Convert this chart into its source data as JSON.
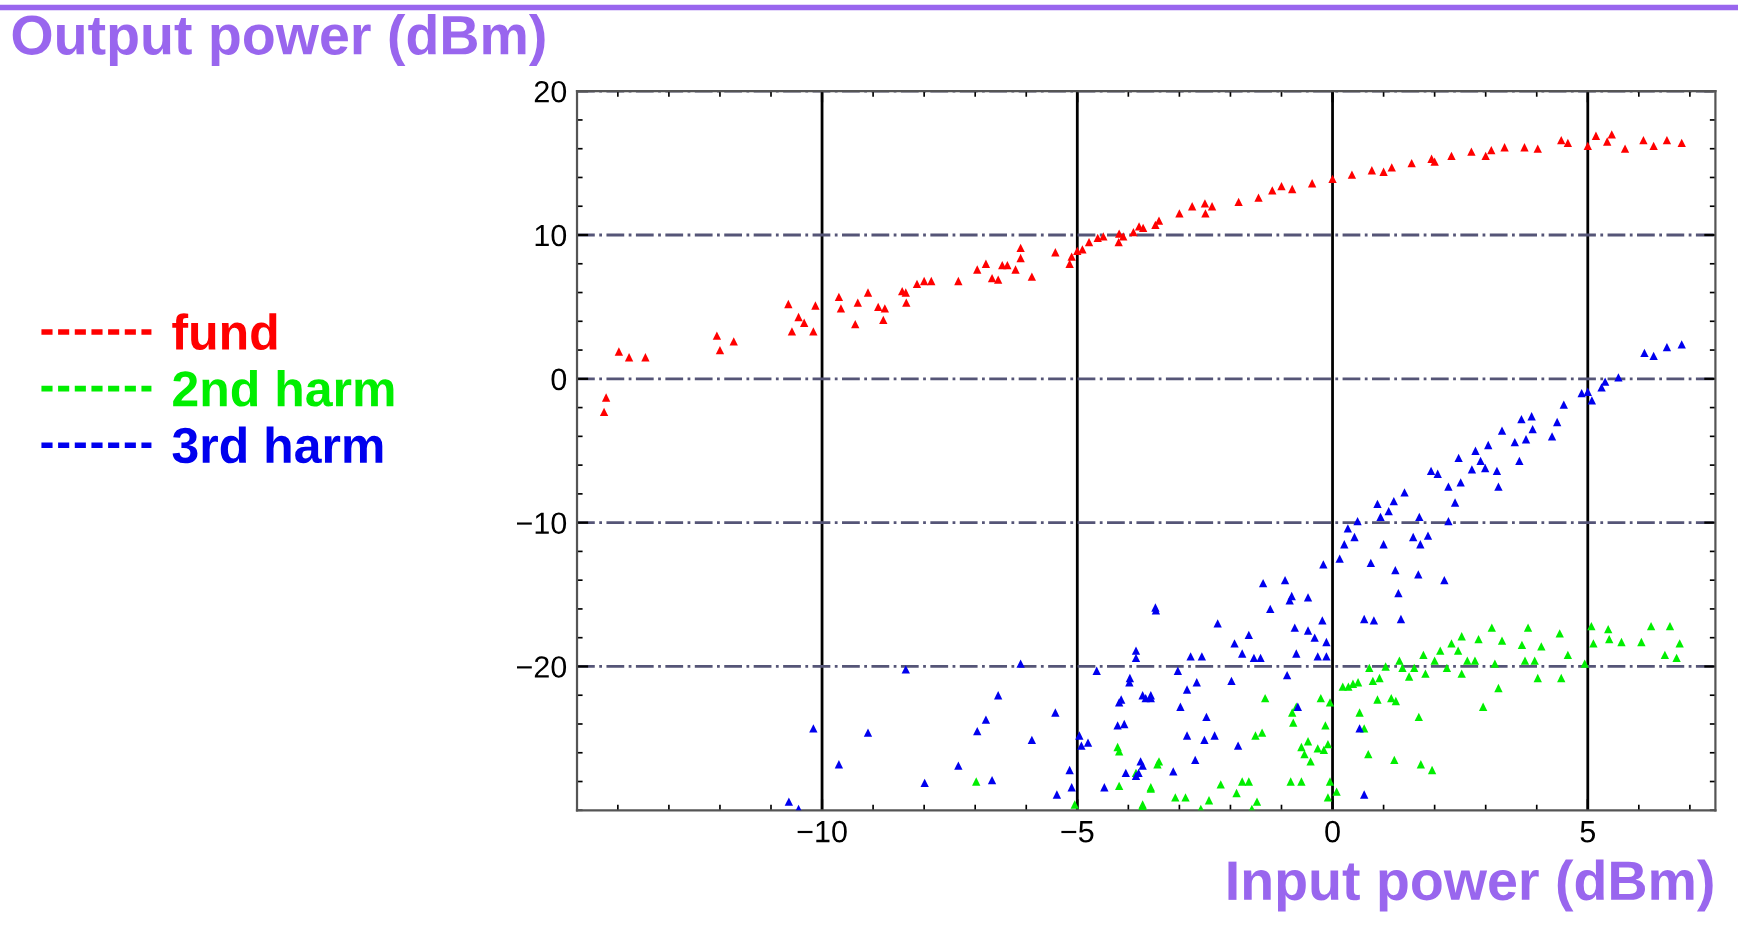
{
  "chart_data": {
    "type": "scatter",
    "xlabel": "Input power (dBm)",
    "ylabel": "Output power (dBm)",
    "xlim": [
      -14.8,
      7.5
    ],
    "ylim": [
      -30,
      20
    ],
    "xticks": [
      {
        "value": -10,
        "label": "−10"
      },
      {
        "value": -5,
        "label": "−5"
      },
      0,
      5
    ],
    "yticks": [
      {
        "value": -20,
        "label": "−20"
      },
      {
        "value": -10,
        "label": "−10"
      },
      0,
      10,
      20
    ],
    "grid": true,
    "legend": "left",
    "marker": "triangle",
    "series": [
      {
        "name": "fund",
        "color": "#ff0000",
        "x": [
          -14.27,
          -14.23,
          -13.98,
          -13.78,
          -13.46,
          -12.06,
          -12.0,
          -11.73,
          -10.66,
          -10.59,
          -10.46,
          -10.35,
          -10.17,
          -10.13,
          -9.67,
          -9.63,
          -9.3,
          -9.35,
          -9.1,
          -8.9,
          -8.8,
          -8.77,
          -8.43,
          -8.35,
          -8.36,
          -8.14,
          -8.0,
          -7.86,
          -7.33,
          -6.96,
          -6.79,
          -6.67,
          -6.55,
          -6.47,
          -6.37,
          -6.21,
          -6.11,
          -6.11,
          -5.89,
          -5.43,
          -5.15,
          -5.11,
          -5.0,
          -4.9,
          -4.77,
          -4.6,
          -4.49,
          -4.19,
          -4.1,
          -3.9,
          -3.71,
          -3.47,
          -4.18,
          -3.79,
          -3.4,
          -3.0,
          -2.75,
          -2.49,
          -2.36,
          -1.84,
          -1.45,
          -1.18,
          -0.79,
          -0.4,
          0.0,
          0.38,
          0.77,
          1.16,
          1.55,
          1.94,
          2.33,
          2.72,
          3.11,
          3.37,
          3.76,
          4.02,
          4.48,
          4.61,
          5.0,
          5.16,
          5.38,
          5.47,
          5.73,
          6.09,
          6.29,
          6.55,
          6.84,
          -2.5,
          -1.0,
          1.0,
          2.0,
          3.0
        ],
        "values": [
          -2.3,
          -1.3,
          1.9,
          1.5,
          1.5,
          3.0,
          2.0,
          2.6,
          5.2,
          3.3,
          4.3,
          3.9,
          3.3,
          5.1,
          5.7,
          4.9,
          5.3,
          3.8,
          6.0,
          5.0,
          4.1,
          4.9,
          6.1,
          5.3,
          6.0,
          6.6,
          6.8,
          6.8,
          6.8,
          7.6,
          8.0,
          7.0,
          6.9,
          7.9,
          7.9,
          7.6,
          8.4,
          9.1,
          7.1,
          8.8,
          8.0,
          8.5,
          8.9,
          9.0,
          9.5,
          9.8,
          9.9,
          9.5,
          9.9,
          10.2,
          10.5,
          10.7,
          10.1,
          10.6,
          11.0,
          11.5,
          12.0,
          11.5,
          12.0,
          12.3,
          12.6,
          13.1,
          13.2,
          13.6,
          13.9,
          14.2,
          14.5,
          14.7,
          15.0,
          15.3,
          15.5,
          15.8,
          15.9,
          16.1,
          16.1,
          16.0,
          16.6,
          16.4,
          16.2,
          16.9,
          16.5,
          17.0,
          16.0,
          16.6,
          16.2,
          16.6,
          16.4,
          12.2,
          13.4,
          14.4,
          15.1,
          15.5
        ]
      },
      {
        "name": "2nd harm",
        "color": "#00ee00",
        "x": [
          -4.18,
          -4.18,
          -3.72,
          -3.56,
          -3.4,
          -3.08,
          -2.88,
          -2.58,
          -2.42,
          -2.19,
          -1.88,
          -1.77,
          -1.64,
          -1.58,
          -1.48,
          -1.51,
          -1.38,
          -1.32,
          -0.82,
          -0.79,
          -0.77,
          -0.71,
          -0.61,
          -0.61,
          -0.55,
          -0.48,
          -0.43,
          -0.29,
          -0.23,
          -0.17,
          -0.14,
          -0.09,
          -0.05,
          -0.05,
          -0.09,
          0.08,
          0.2,
          0.31,
          0.4,
          0.5,
          0.53,
          0.62,
          0.7,
          0.72,
          0.79,
          0.88,
          0.92,
          1.04,
          1.15,
          1.21,
          1.24,
          1.31,
          1.37,
          1.5,
          1.6,
          1.69,
          1.73,
          1.78,
          1.82,
          1.95,
          2.0,
          2.11,
          2.24,
          2.33,
          2.46,
          2.53,
          2.53,
          2.64,
          2.79,
          2.86,
          2.95,
          3.12,
          3.18,
          3.25,
          3.32,
          3.71,
          3.77,
          3.83,
          3.96,
          4.02,
          4.09,
          4.45,
          4.48,
          4.61,
          4.94,
          5.07,
          5.11,
          5.4,
          5.42,
          5.66,
          6.05,
          6.24,
          6.51,
          6.61,
          6.74,
          6.8,
          -6.98,
          -5.05,
          -4.21,
          -3.85,
          -3.72,
          -3.56,
          -3.43
        ],
        "values": [
          -25.9,
          -28.3,
          -29.6,
          -28.5,
          -26.6,
          -29.1,
          -29.1,
          -29.9,
          -29.3,
          -28.2,
          -28.8,
          -28.0,
          -28.0,
          -29.9,
          -29.4,
          -24.8,
          -24.6,
          -22.2,
          -28.0,
          -23.2,
          -23.9,
          -22.8,
          -28.0,
          -25.6,
          -26.1,
          -25.2,
          -26.6,
          -25.7,
          -22.2,
          -25.8,
          -24.1,
          -25.4,
          -22.5,
          -28.0,
          -29.1,
          -28.7,
          -21.4,
          -21.4,
          -21.2,
          -21.1,
          -23.2,
          -24.3,
          -26.1,
          -20.1,
          -21.0,
          -22.3,
          -20.8,
          -20.0,
          -22.2,
          -26.5,
          -22.4,
          -19.6,
          -20.1,
          -20.7,
          -20.1,
          -23.5,
          -26.8,
          -19.2,
          -20.5,
          -27.2,
          -19.6,
          -18.9,
          -20.1,
          -18.4,
          -18.9,
          -17.9,
          -20.5,
          -19.6,
          -19.6,
          -18.1,
          -22.8,
          -17.3,
          -19.8,
          -21.5,
          -18.2,
          -18.5,
          -19.6,
          -17.3,
          -19.6,
          -20.8,
          -18.6,
          -17.7,
          -20.8,
          -19.2,
          -19.8,
          -17.2,
          -18.4,
          -17.4,
          -18.1,
          -18.3,
          -18.3,
          -17.2,
          -19.2,
          -17.2,
          -19.4,
          -18.4,
          -28.0,
          -29.6,
          -25.6,
          -27.4,
          -29.7,
          -28.4,
          -26.8
        ]
      },
      {
        "name": "3rd harm",
        "color": "#0000ee",
        "x": [
          -10.65,
          -10.46,
          -10.17,
          -9.67,
          -9.1,
          -8.36,
          -7.99,
          -7.33,
          -6.96,
          -6.79,
          -6.67,
          -6.55,
          -6.11,
          -5.89,
          -5.43,
          -5.4,
          -5.15,
          -5.11,
          -4.96,
          -4.92,
          -4.79,
          -4.62,
          -4.47,
          -4.21,
          -4.14,
          -4.08,
          -4.05,
          -3.97,
          -3.85,
          -3.8,
          -3.76,
          -3.72,
          -3.56,
          -3.47,
          -4.18,
          -3.98,
          -3.85,
          -3.66,
          -3.56,
          -3.46,
          -3.72,
          -3.85,
          -3.12,
          -3.03,
          -2.98,
          -2.85,
          -2.78,
          -2.85,
          -2.69,
          -2.66,
          -2.56,
          -2.51,
          -2.47,
          -2.31,
          -2.25,
          -1.98,
          -1.92,
          -1.85,
          -1.77,
          -1.64,
          -1.54,
          -1.41,
          -1.36,
          -1.22,
          -0.93,
          -0.84,
          -0.8,
          -0.89,
          -0.74,
          -0.71,
          -0.68,
          -0.48,
          -0.48,
          -0.35,
          -0.29,
          -0.2,
          -0.18,
          -0.12,
          -0.12,
          0.14,
          0.23,
          0.3,
          0.43,
          0.49,
          0.62,
          0.53,
          0.62,
          0.75,
          0.81,
          0.88,
          0.94,
          1.0,
          1.1,
          1.2,
          1.23,
          1.29,
          1.34,
          1.41,
          1.58,
          1.68,
          1.7,
          1.72,
          1.87,
          1.93,
          2.06,
          2.19,
          2.27,
          2.27,
          2.47,
          2.4,
          2.51,
          2.73,
          2.8,
          2.9,
          2.99,
          3.05,
          3.22,
          3.25,
          3.32,
          3.57,
          3.66,
          3.7,
          3.79,
          3.9,
          3.92,
          4.3,
          4.4,
          4.53,
          4.88,
          5.0,
          5.08,
          5.27,
          5.34,
          5.6,
          6.11,
          6.29,
          6.55,
          6.84
        ],
        "values": [
          -29.4,
          -29.9,
          -24.3,
          -26.8,
          -24.6,
          -20.2,
          -28.1,
          -26.9,
          -24.5,
          -23.7,
          -27.9,
          -22.0,
          -19.8,
          -25.1,
          -23.2,
          -28.9,
          -27.2,
          -28.4,
          -24.8,
          -25.5,
          -25.3,
          -20.3,
          -28.4,
          -24.1,
          -22.3,
          -24.0,
          -27.4,
          -20.8,
          -18.9,
          -27.4,
          -26.6,
          -22.0,
          -22.0,
          -15.9,
          -22.5,
          -21.1,
          -19.4,
          -22.2,
          -22.2,
          -16.1,
          -26.9,
          -27.6,
          -27.3,
          -20.3,
          -22.8,
          -21.6,
          -19.3,
          -24.8,
          -26.5,
          -21.1,
          -19.3,
          -25.1,
          -23.5,
          -24.8,
          -17.0,
          -21.0,
          -18.4,
          -25.5,
          -19.1,
          -17.8,
          -19.4,
          -19.4,
          -14.2,
          -16.0,
          -14.0,
          -15.4,
          -15.1,
          -20.6,
          -17.3,
          -19.1,
          -22.8,
          -15.2,
          -17.5,
          -18.0,
          -19.3,
          -16.8,
          -12.9,
          -18.3,
          -19.3,
          -12.5,
          -11.5,
          -10.4,
          -11.0,
          -9.9,
          -16.7,
          -24.3,
          -28.9,
          -12.8,
          -16.8,
          -8.7,
          -9.6,
          -11.5,
          -9.2,
          -8.5,
          -13.3,
          -14.9,
          -16.7,
          -7.9,
          -11.0,
          -13.6,
          -9.6,
          -11.5,
          -10.9,
          -6.4,
          -6.6,
          -14.0,
          -9.9,
          -7.5,
          -5.5,
          -8.6,
          -7.2,
          -6.3,
          -5.0,
          -5.7,
          -6.2,
          -4.6,
          -6.4,
          -7.5,
          -3.6,
          -4.4,
          -5.7,
          -2.8,
          -4.2,
          -2.6,
          -3.5,
          -4.0,
          -3.0,
          -1.8,
          -1.0,
          -0.9,
          -1.5,
          -0.6,
          -0.2,
          0.1,
          1.8,
          1.6,
          2.2,
          2.4
        ]
      }
    ]
  }
}
